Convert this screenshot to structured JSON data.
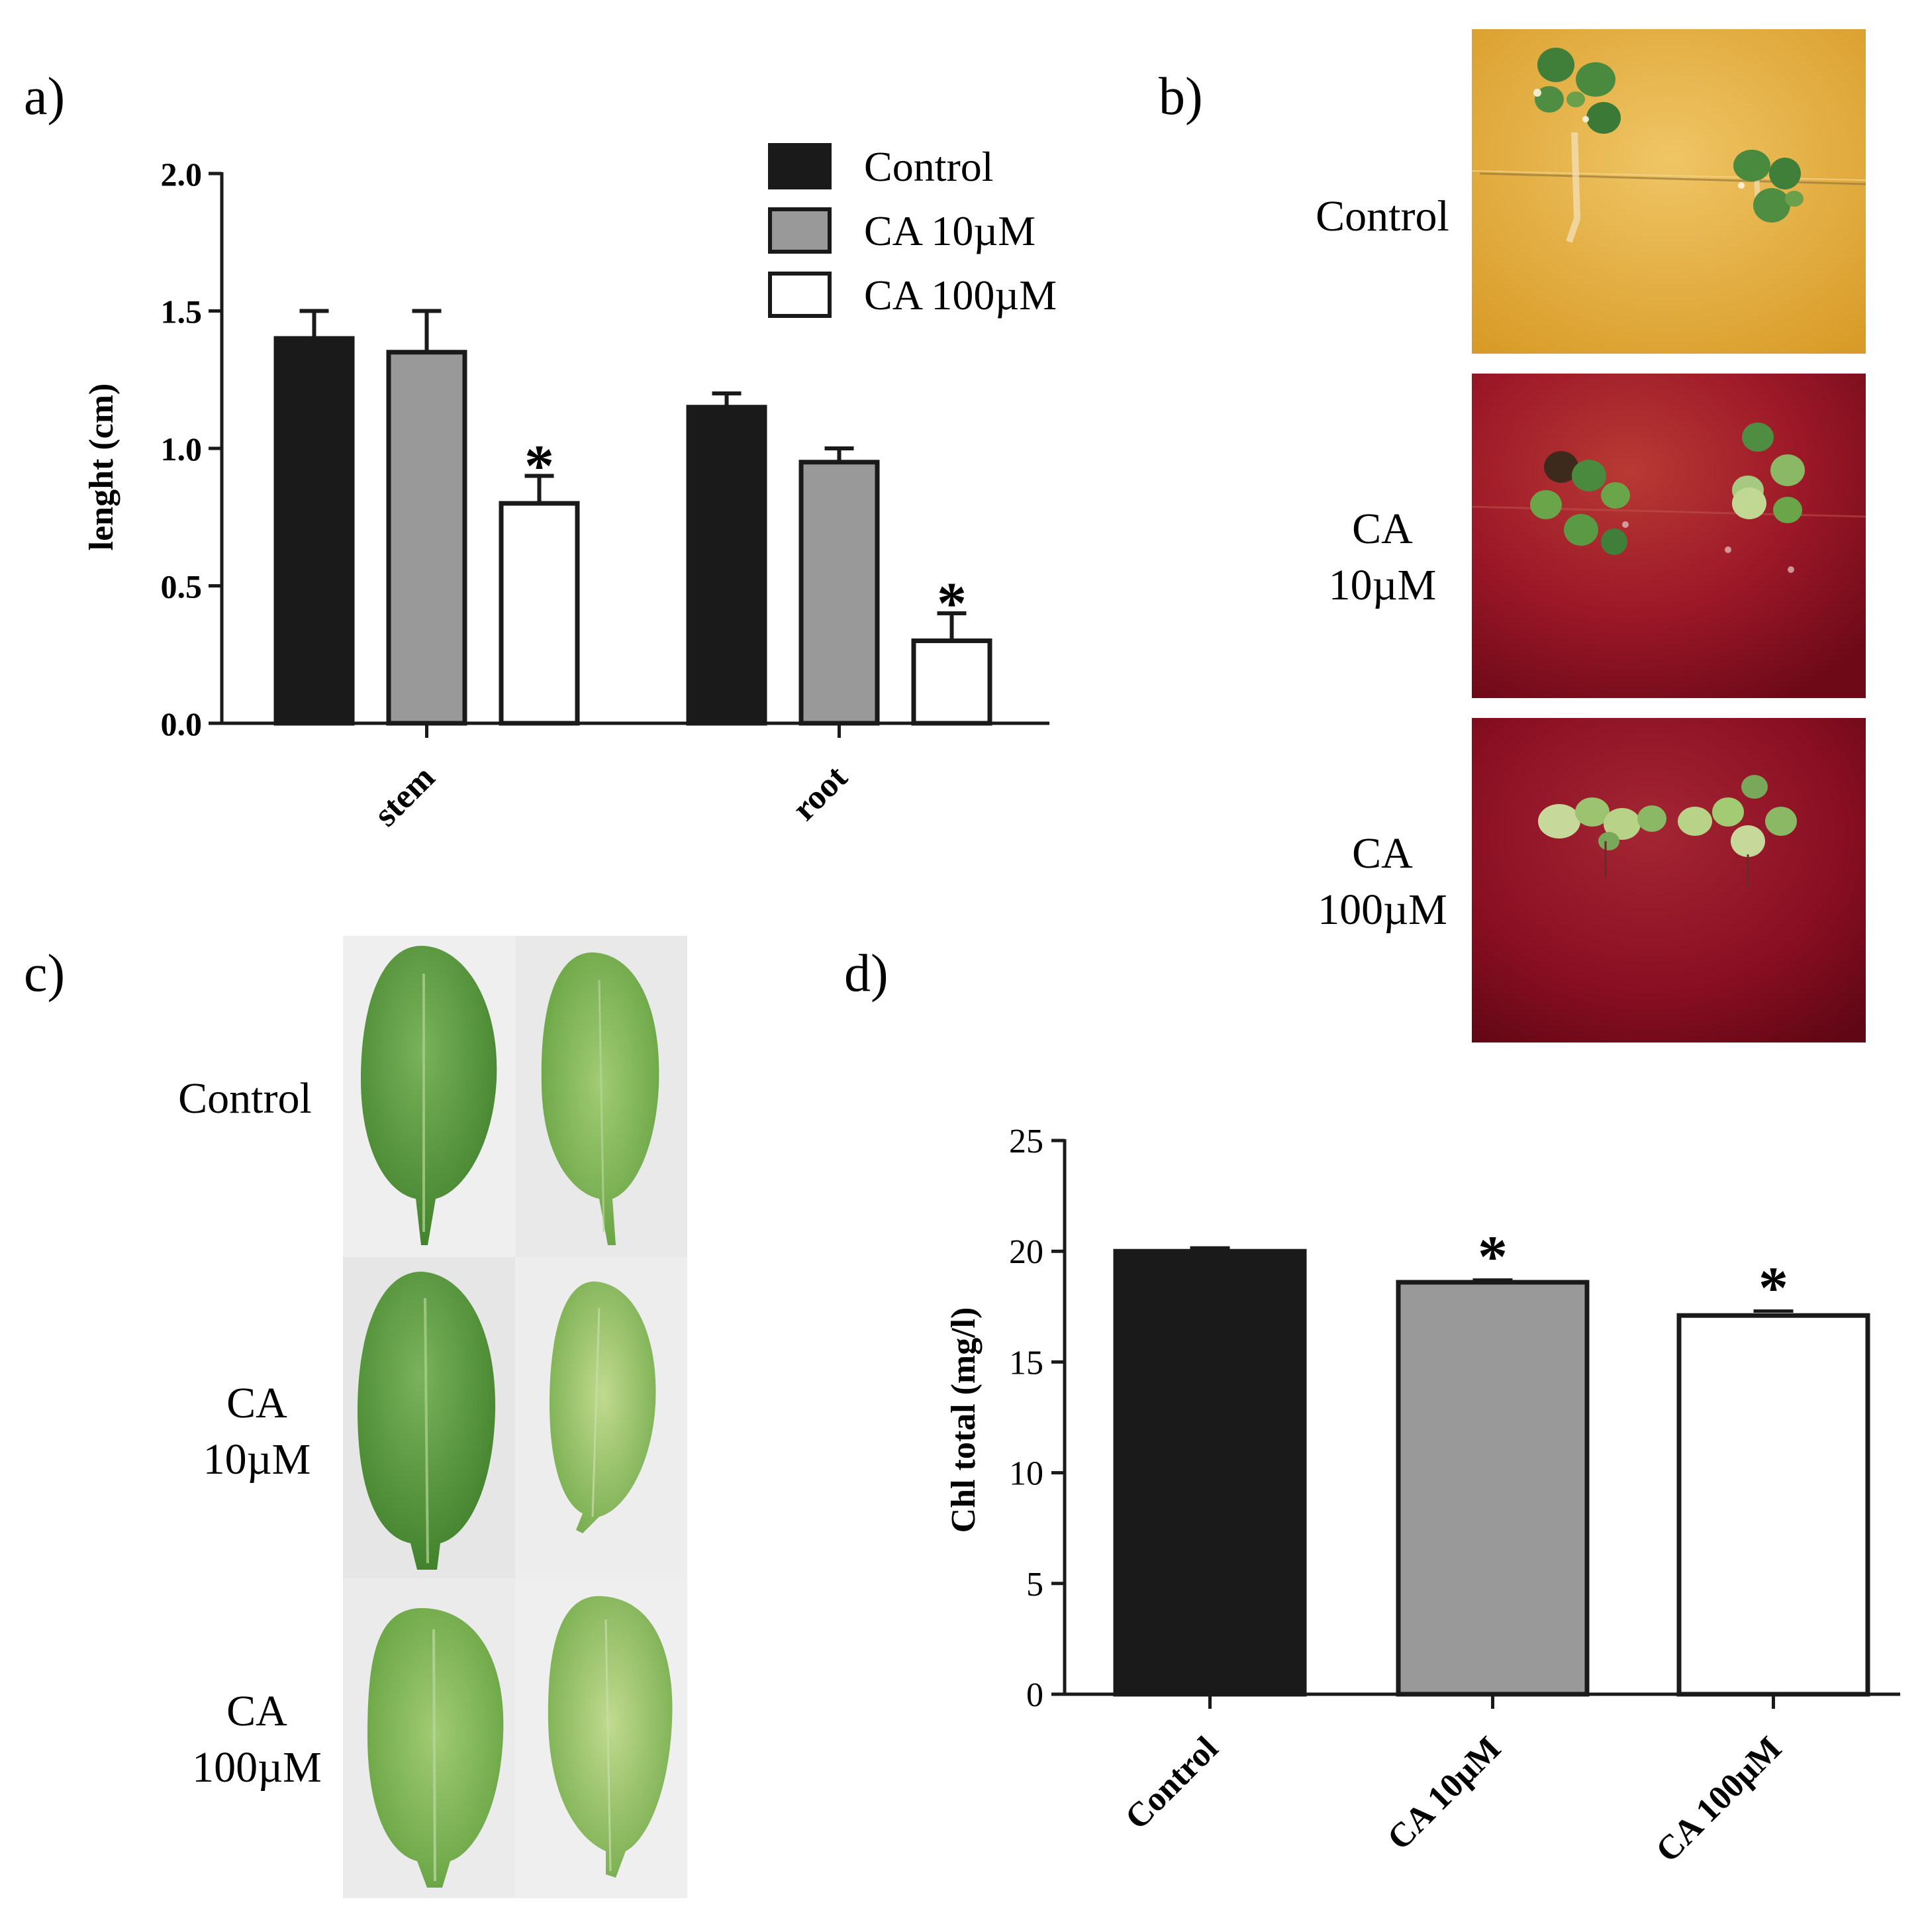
{
  "panels": {
    "a": "a)",
    "b": "b)",
    "c": "c)",
    "d": "d)"
  },
  "photo_labels": {
    "b": [
      {
        "line1": "Control",
        "line2": ""
      },
      {
        "line1": "CA",
        "line2": "10µM"
      },
      {
        "line1": "CA",
        "line2": "100µM"
      }
    ],
    "c": [
      {
        "line1": "Control",
        "line2": ""
      },
      {
        "line1": "CA",
        "line2": "10µM"
      },
      {
        "line1": "CA",
        "line2": "100µM"
      }
    ]
  },
  "colors": {
    "control": "#1a1a1a",
    "ca10": "#999999",
    "ca100": "#ffffff",
    "plate_control": "#e3ad3c",
    "plate_ca": "#9a1424",
    "leaf": "#5c9c3a",
    "leaf_bg": "#ececec"
  },
  "chart_data": [
    {
      "type": "bar",
      "panel": "a)",
      "categories": [
        "stem",
        "root"
      ],
      "series": [
        {
          "name": "Control",
          "values": [
            1.4,
            1.15
          ],
          "errors": [
            0.1,
            0.05
          ]
        },
        {
          "name": "CA 10µM",
          "values": [
            1.35,
            0.95
          ],
          "errors": [
            0.15,
            0.05
          ]
        },
        {
          "name": "CA 100µM",
          "values": [
            0.8,
            0.3
          ],
          "errors": [
            0.1,
            0.1
          ]
        }
      ],
      "significance": [
        {
          "category": "stem",
          "series": "CA 100µM",
          "mark": "*"
        },
        {
          "category": "root",
          "series": "CA 100µM",
          "mark": "*"
        }
      ],
      "ylabel": "lenght (cm)",
      "xlabel": "",
      "ylim": [
        0,
        2.0
      ],
      "yticks": [
        "0.0",
        "0.5",
        "1.0",
        "1.5",
        "2.0"
      ],
      "legend_position": "top-right",
      "grid": false
    },
    {
      "type": "bar",
      "panel": "d)",
      "categories": [
        "Control",
        "CA 10µM",
        "CA 100µM"
      ],
      "values": [
        20.0,
        18.6,
        17.1
      ],
      "errors": [
        0.15,
        0.1,
        0.2
      ],
      "significance": [
        "",
        "*",
        "*"
      ],
      "ylabel": "Chl total (mg/l)",
      "xlabel": "",
      "ylim": [
        0,
        25
      ],
      "yticks": [
        "0",
        "5",
        "10",
        "15",
        "20",
        "25"
      ],
      "grid": false
    }
  ]
}
